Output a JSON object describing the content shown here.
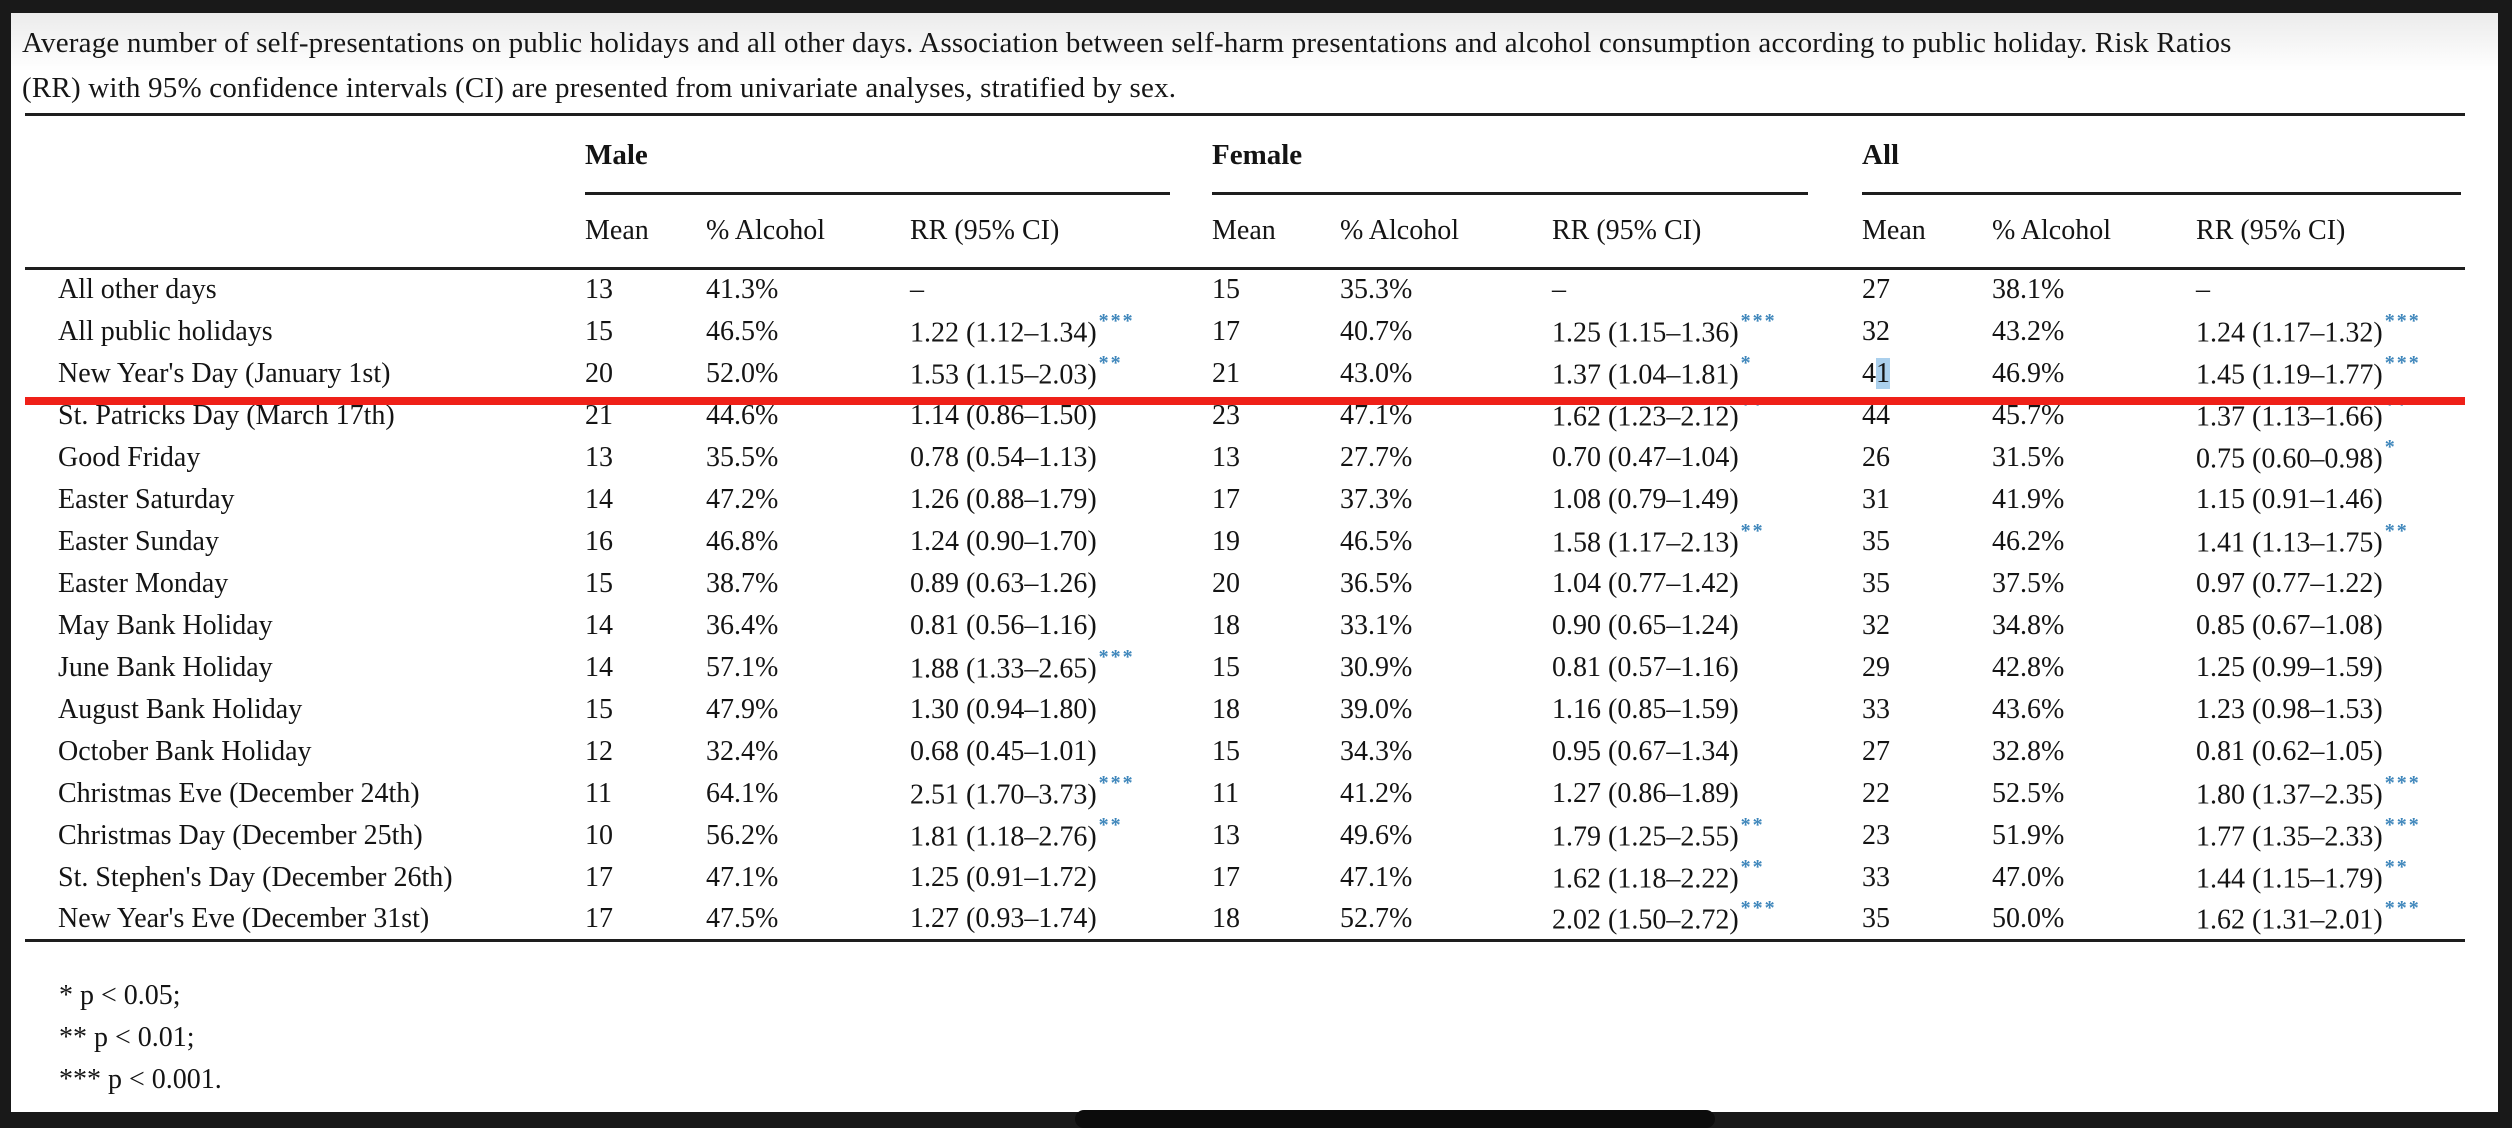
{
  "caption_lines": [
    "Average number of self-presentations on public holidays and all other days. Association between self-harm presentations and alcohol consumption according to public holiday. Risk Ratios",
    "(RR) with 95% confidence intervals (CI) are presented from univariate analyses, stratified by sex."
  ],
  "table": {
    "groups": [
      {
        "label": "Male"
      },
      {
        "label": "Female"
      },
      {
        "label": "All"
      }
    ],
    "subheaders": [
      "Mean",
      "% Alcohol",
      "RR (95% CI)"
    ],
    "selection": {
      "row_index": 2,
      "group": "all",
      "field": "mean",
      "char_index": 1,
      "length": 1,
      "selected_text": "1"
    },
    "rows": [
      {
        "label": "All other days",
        "male": {
          "mean": "13",
          "alcohol": "41.3%",
          "rr": "–",
          "sig": ""
        },
        "female": {
          "mean": "15",
          "alcohol": "35.3%",
          "rr": "–",
          "sig": ""
        },
        "all": {
          "mean": "27",
          "alcohol": "38.1%",
          "rr": "–",
          "sig": ""
        }
      },
      {
        "label": "All public holidays",
        "male": {
          "mean": "15",
          "alcohol": "46.5%",
          "rr": "1.22 (1.12–1.34)",
          "sig": "***"
        },
        "female": {
          "mean": "17",
          "alcohol": "40.7%",
          "rr": "1.25 (1.15–1.36)",
          "sig": "***"
        },
        "all": {
          "mean": "32",
          "alcohol": "43.2%",
          "rr": "1.24 (1.17–1.32)",
          "sig": "***"
        }
      },
      {
        "label": "New Year's Day (January 1st)",
        "male": {
          "mean": "20",
          "alcohol": "52.0%",
          "rr": "1.53 (1.15–2.03)",
          "sig": "**"
        },
        "female": {
          "mean": "21",
          "alcohol": "43.0%",
          "rr": "1.37 (1.04–1.81)",
          "sig": "*"
        },
        "all": {
          "mean": "41",
          "alcohol": "46.9%",
          "rr": "1.45 (1.19–1.77)",
          "sig": "***"
        }
      },
      {
        "label": "St. Patricks Day (March 17th)",
        "male": {
          "mean": "21",
          "alcohol": "44.6%",
          "rr": "1.14 (0.86–1.50)",
          "sig": ""
        },
        "female": {
          "mean": "23",
          "alcohol": "47.1%",
          "rr": "1.62 (1.23–2.12)",
          "sig": "**"
        },
        "all": {
          "mean": "44",
          "alcohol": "45.7%",
          "rr": "1.37 (1.13–1.66)",
          "sig": "**"
        }
      },
      {
        "label": "Good Friday",
        "male": {
          "mean": "13",
          "alcohol": "35.5%",
          "rr": "0.78 (0.54–1.13)",
          "sig": ""
        },
        "female": {
          "mean": "13",
          "alcohol": "27.7%",
          "rr": "0.70 (0.47–1.04)",
          "sig": ""
        },
        "all": {
          "mean": "26",
          "alcohol": "31.5%",
          "rr": "0.75 (0.60–0.98)",
          "sig": "*"
        }
      },
      {
        "label": "Easter Saturday",
        "male": {
          "mean": "14",
          "alcohol": "47.2%",
          "rr": "1.26 (0.88–1.79)",
          "sig": ""
        },
        "female": {
          "mean": "17",
          "alcohol": "37.3%",
          "rr": "1.08 (0.79–1.49)",
          "sig": ""
        },
        "all": {
          "mean": "31",
          "alcohol": "41.9%",
          "rr": "1.15 (0.91–1.46)",
          "sig": ""
        }
      },
      {
        "label": "Easter Sunday",
        "male": {
          "mean": "16",
          "alcohol": "46.8%",
          "rr": "1.24 (0.90–1.70)",
          "sig": ""
        },
        "female": {
          "mean": "19",
          "alcohol": "46.5%",
          "rr": "1.58 (1.17–2.13)",
          "sig": "**"
        },
        "all": {
          "mean": "35",
          "alcohol": "46.2%",
          "rr": "1.41 (1.13–1.75)",
          "sig": "**"
        }
      },
      {
        "label": "Easter Monday",
        "male": {
          "mean": "15",
          "alcohol": "38.7%",
          "rr": "0.89 (0.63–1.26)",
          "sig": ""
        },
        "female": {
          "mean": "20",
          "alcohol": "36.5%",
          "rr": "1.04 (0.77–1.42)",
          "sig": ""
        },
        "all": {
          "mean": "35",
          "alcohol": "37.5%",
          "rr": "0.97 (0.77–1.22)",
          "sig": ""
        }
      },
      {
        "label": "May Bank Holiday",
        "male": {
          "mean": "14",
          "alcohol": "36.4%",
          "rr": "0.81 (0.56–1.16)",
          "sig": ""
        },
        "female": {
          "mean": "18",
          "alcohol": "33.1%",
          "rr": "0.90 (0.65–1.24)",
          "sig": ""
        },
        "all": {
          "mean": "32",
          "alcohol": "34.8%",
          "rr": "0.85 (0.67–1.08)",
          "sig": ""
        }
      },
      {
        "label": "June Bank Holiday",
        "male": {
          "mean": "14",
          "alcohol": "57.1%",
          "rr": "1.88 (1.33–2.65)",
          "sig": "***"
        },
        "female": {
          "mean": "15",
          "alcohol": "30.9%",
          "rr": "0.81 (0.57–1.16)",
          "sig": ""
        },
        "all": {
          "mean": "29",
          "alcohol": "42.8%",
          "rr": "1.25 (0.99–1.59)",
          "sig": ""
        }
      },
      {
        "label": "August Bank Holiday",
        "male": {
          "mean": "15",
          "alcohol": "47.9%",
          "rr": "1.30 (0.94–1.80)",
          "sig": ""
        },
        "female": {
          "mean": "18",
          "alcohol": "39.0%",
          "rr": "1.16 (0.85–1.59)",
          "sig": ""
        },
        "all": {
          "mean": "33",
          "alcohol": "43.6%",
          "rr": "1.23 (0.98–1.53)",
          "sig": ""
        }
      },
      {
        "label": "October Bank Holiday",
        "male": {
          "mean": "12",
          "alcohol": "32.4%",
          "rr": "0.68 (0.45–1.01)",
          "sig": ""
        },
        "female": {
          "mean": "15",
          "alcohol": "34.3%",
          "rr": "0.95 (0.67–1.34)",
          "sig": ""
        },
        "all": {
          "mean": "27",
          "alcohol": "32.8%",
          "rr": "0.81 (0.62–1.05)",
          "sig": ""
        }
      },
      {
        "label": "Christmas Eve (December 24th)",
        "male": {
          "mean": "11",
          "alcohol": "64.1%",
          "rr": "2.51 (1.70–3.73)",
          "sig": "***"
        },
        "female": {
          "mean": "11",
          "alcohol": "41.2%",
          "rr": "1.27 (0.86–1.89)",
          "sig": ""
        },
        "all": {
          "mean": "22",
          "alcohol": "52.5%",
          "rr": "1.80 (1.37–2.35)",
          "sig": "***"
        }
      },
      {
        "label": "Christmas Day (December 25th)",
        "male": {
          "mean": "10",
          "alcohol": "56.2%",
          "rr": "1.81 (1.18–2.76)",
          "sig": "**"
        },
        "female": {
          "mean": "13",
          "alcohol": "49.6%",
          "rr": "1.79 (1.25–2.55)",
          "sig": "**"
        },
        "all": {
          "mean": "23",
          "alcohol": "51.9%",
          "rr": "1.77 (1.35–2.33)",
          "sig": "***"
        }
      },
      {
        "label": "St. Stephen's Day (December 26th)",
        "male": {
          "mean": "17",
          "alcohol": "47.1%",
          "rr": "1.25 (0.91–1.72)",
          "sig": ""
        },
        "female": {
          "mean": "17",
          "alcohol": "47.1%",
          "rr": "1.62 (1.18–2.22)",
          "sig": "**"
        },
        "all": {
          "mean": "33",
          "alcohol": "47.0%",
          "rr": "1.44 (1.15–1.79)",
          "sig": "**"
        }
      },
      {
        "label": "New Year's Eve (December 31st)",
        "male": {
          "mean": "17",
          "alcohol": "47.5%",
          "rr": "1.27 (0.93–1.74)",
          "sig": ""
        },
        "female": {
          "mean": "18",
          "alcohol": "52.7%",
          "rr": "2.02 (1.50–2.72)",
          "sig": "***"
        },
        "all": {
          "mean": "35",
          "alcohol": "50.0%",
          "rr": "1.62 (1.31–2.01)",
          "sig": "***"
        }
      }
    ]
  },
  "footnotes": [
    "* p < 0.05;",
    "** p < 0.01;",
    "*** p < 0.001."
  ],
  "colors": {
    "significance_star": "#3e86bb",
    "annotation_line": "#ef2018",
    "text_selection": "#abd0ed"
  }
}
